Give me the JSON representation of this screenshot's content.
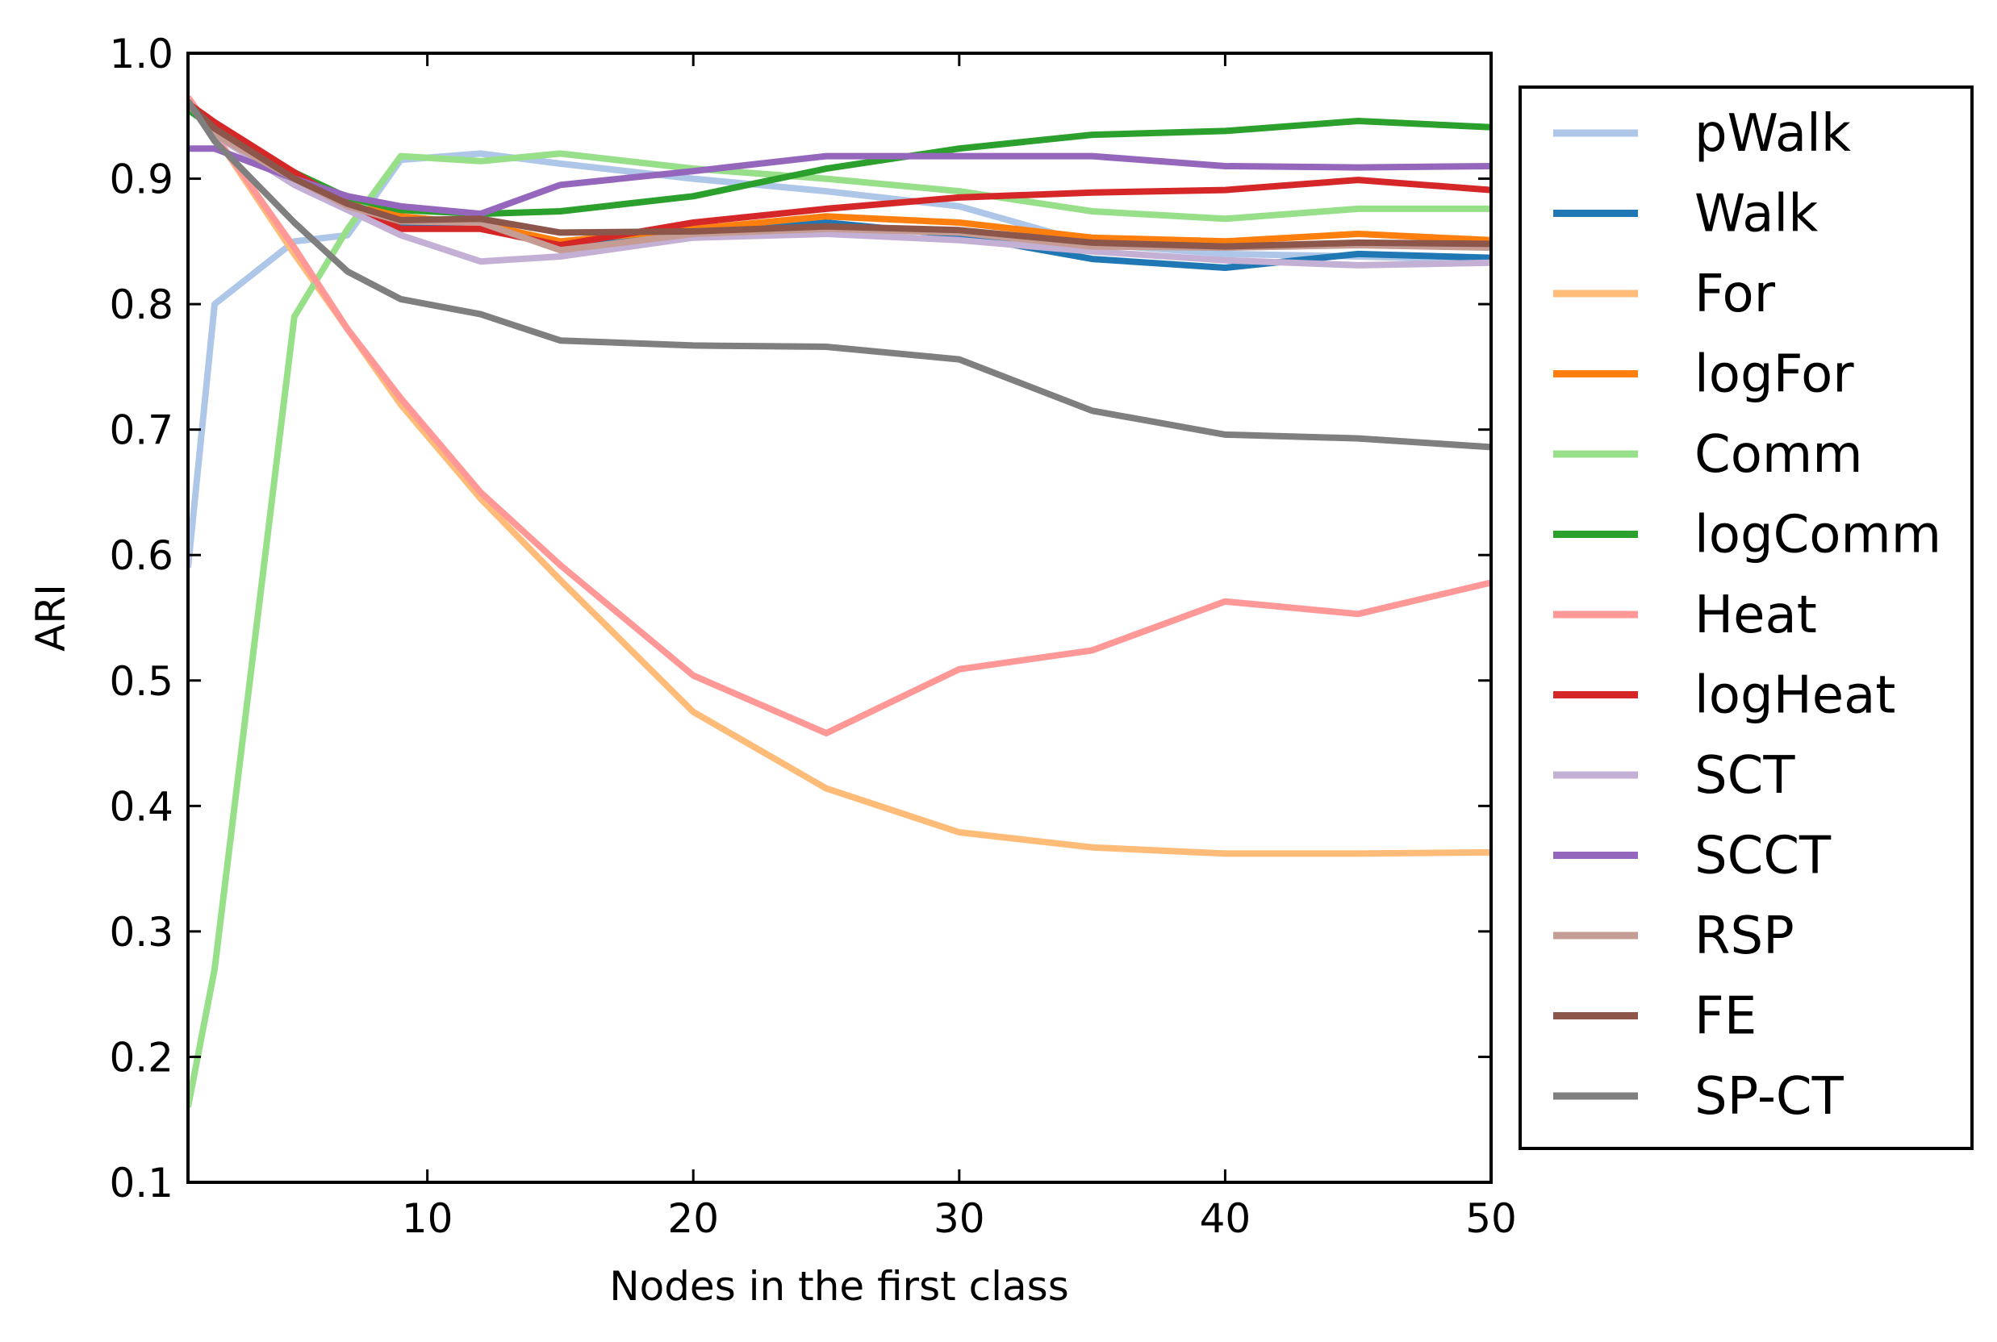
{
  "chart_data": {
    "type": "line",
    "title": "",
    "xlabel": "Nodes in the first class",
    "ylabel": "ARI",
    "xlim": [
      1,
      50
    ],
    "ylim": [
      0.1,
      1.0
    ],
    "grid": false,
    "legend_position": "outside-right",
    "x_ticks": [
      10,
      20,
      30,
      40,
      50
    ],
    "x_tick_labels": [
      "10",
      "20",
      "30",
      "40",
      "50"
    ],
    "y_ticks": [
      0.1,
      0.2,
      0.3,
      0.4,
      0.5,
      0.6,
      0.7,
      0.8,
      0.9,
      1.0
    ],
    "y_tick_labels": [
      "0.1",
      "0.2",
      "0.3",
      "0.4",
      "0.5",
      "0.6",
      "0.7",
      "0.8",
      "0.9",
      "1.0"
    ],
    "x": [
      1,
      2,
      5,
      7,
      9,
      12,
      15,
      20,
      25,
      30,
      35,
      40,
      45,
      50
    ],
    "series": [
      {
        "name": "pWalk",
        "color": "#aec7e8",
        "values": [
          0.59,
          0.8,
          0.85,
          0.855,
          0.915,
          0.92,
          0.912,
          0.9,
          0.89,
          0.878,
          0.848,
          0.84,
          0.838,
          0.835
        ]
      },
      {
        "name": "Walk",
        "color": "#1f77b4",
        "values": [
          0.96,
          0.94,
          0.905,
          0.88,
          0.865,
          0.862,
          0.848,
          0.855,
          0.865,
          0.855,
          0.836,
          0.829,
          0.84,
          0.837
        ]
      },
      {
        "name": "For",
        "color": "#ffbb78",
        "values": [
          0.96,
          0.935,
          0.84,
          0.78,
          0.72,
          0.645,
          0.58,
          0.475,
          0.414,
          0.379,
          0.367,
          0.362,
          0.362,
          0.363
        ]
      },
      {
        "name": "logFor",
        "color": "#ff7f0e",
        "values": [
          0.96,
          0.94,
          0.905,
          0.88,
          0.87,
          0.864,
          0.85,
          0.86,
          0.87,
          0.865,
          0.853,
          0.85,
          0.856,
          0.851
        ]
      },
      {
        "name": "Comm",
        "color": "#98df8a",
        "values": [
          0.16,
          0.27,
          0.79,
          0.86,
          0.918,
          0.914,
          0.92,
          0.908,
          0.9,
          0.89,
          0.874,
          0.868,
          0.876,
          0.876
        ]
      },
      {
        "name": "logComm",
        "color": "#2ca02c",
        "values": [
          0.955,
          0.94,
          0.905,
          0.885,
          0.875,
          0.872,
          0.874,
          0.886,
          0.908,
          0.924,
          0.935,
          0.938,
          0.946,
          0.941
        ]
      },
      {
        "name": "Heat",
        "color": "#ff9896",
        "values": [
          0.965,
          0.935,
          0.845,
          0.78,
          0.725,
          0.65,
          0.592,
          0.504,
          0.458,
          0.509,
          0.524,
          0.563,
          0.553,
          0.578
        ]
      },
      {
        "name": "logHeat",
        "color": "#d62728",
        "values": [
          0.96,
          0.945,
          0.905,
          0.88,
          0.86,
          0.86,
          0.847,
          0.865,
          0.876,
          0.885,
          0.889,
          0.891,
          0.899,
          0.891
        ]
      },
      {
        "name": "SCT",
        "color": "#c5b0d5",
        "values": [
          0.96,
          0.935,
          0.895,
          0.875,
          0.855,
          0.834,
          0.838,
          0.853,
          0.856,
          0.851,
          0.842,
          0.835,
          0.831,
          0.833
        ]
      },
      {
        "name": "SCCT",
        "color": "#9467bd",
        "values": [
          0.924,
          0.924,
          0.9,
          0.886,
          0.878,
          0.872,
          0.895,
          0.906,
          0.918,
          0.918,
          0.918,
          0.91,
          0.909,
          0.91
        ]
      },
      {
        "name": "RSP",
        "color": "#c49c94",
        "values": [
          0.96,
          0.935,
          0.9,
          0.878,
          0.866,
          0.865,
          0.843,
          0.856,
          0.86,
          0.857,
          0.846,
          0.845,
          0.847,
          0.845
        ]
      },
      {
        "name": "FE",
        "color": "#8c564b",
        "values": [
          0.96,
          0.94,
          0.9,
          0.88,
          0.867,
          0.868,
          0.857,
          0.858,
          0.862,
          0.859,
          0.849,
          0.846,
          0.849,
          0.848
        ]
      },
      {
        "name": "SP-CT",
        "color": "#7f7f7f",
        "values": [
          0.962,
          0.93,
          0.865,
          0.826,
          0.804,
          0.792,
          0.771,
          0.767,
          0.766,
          0.756,
          0.715,
          0.696,
          0.693,
          0.686
        ]
      }
    ]
  }
}
